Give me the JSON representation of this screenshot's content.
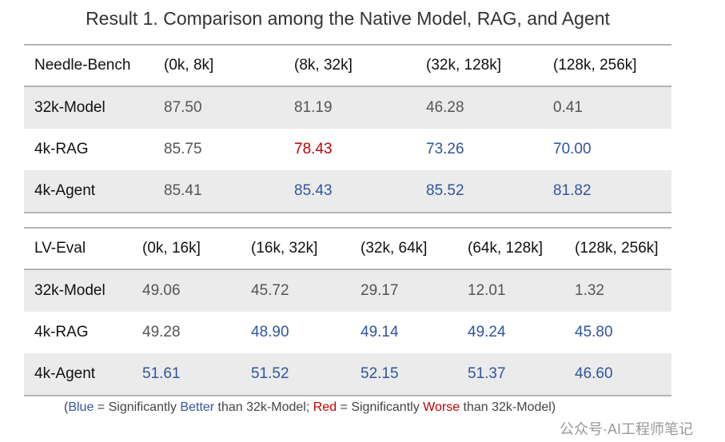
{
  "title": "Result 1. Comparison among the Native Model, RAG, and Agent",
  "colors": {
    "blue": "#2f55a0",
    "red": "#c00000"
  },
  "tables": [
    {
      "columns": [
        "Needle-Bench",
        "(0k, 8k]",
        "(8k, 32k]",
        "(32k, 128k]",
        "(128k, 256k]"
      ],
      "rows": [
        {
          "label": "32k-Model",
          "values": [
            "87.50",
            "81.19",
            "46.28",
            "0.41"
          ],
          "status": [
            "",
            "",
            "",
            ""
          ]
        },
        {
          "label": "4k-RAG",
          "values": [
            "85.75",
            "78.43",
            "73.26",
            "70.00"
          ],
          "status": [
            "",
            "red",
            "blue",
            "blue"
          ]
        },
        {
          "label": "4k-Agent",
          "values": [
            "85.41",
            "85.43",
            "85.52",
            "81.82"
          ],
          "status": [
            "",
            "blue",
            "blue",
            "blue"
          ]
        }
      ]
    },
    {
      "columns": [
        "LV-Eval",
        "(0k, 16k]",
        "(16k, 32k]",
        "(32k, 64k]",
        "(64k, 128k]",
        "(128k, 256k]"
      ],
      "rows": [
        {
          "label": "32k-Model",
          "values": [
            "49.06",
            "45.72",
            "29.17",
            "12.01",
            "1.32"
          ],
          "status": [
            "",
            "",
            "",
            "",
            ""
          ]
        },
        {
          "label": "4k-RAG",
          "values": [
            "49.28",
            "48.90",
            "49.14",
            "49.24",
            "45.80"
          ],
          "status": [
            "",
            "blue",
            "blue",
            "blue",
            "blue"
          ]
        },
        {
          "label": "4k-Agent",
          "values": [
            "51.61",
            "51.52",
            "52.15",
            "51.37",
            "46.60"
          ],
          "status": [
            "blue",
            "blue",
            "blue",
            "blue",
            "blue"
          ]
        }
      ]
    }
  ],
  "footnote": {
    "open": "(",
    "blue_word": "Blue",
    "eq1": " = Significantly ",
    "better": "Better",
    "than1": " than 32k-Model; ",
    "red_word": "Red",
    "eq2": " = Significantly ",
    "worse": "Worse",
    "than2": " than 32k-Model)"
  },
  "watermark": "公众号·AI工程师笔记"
}
